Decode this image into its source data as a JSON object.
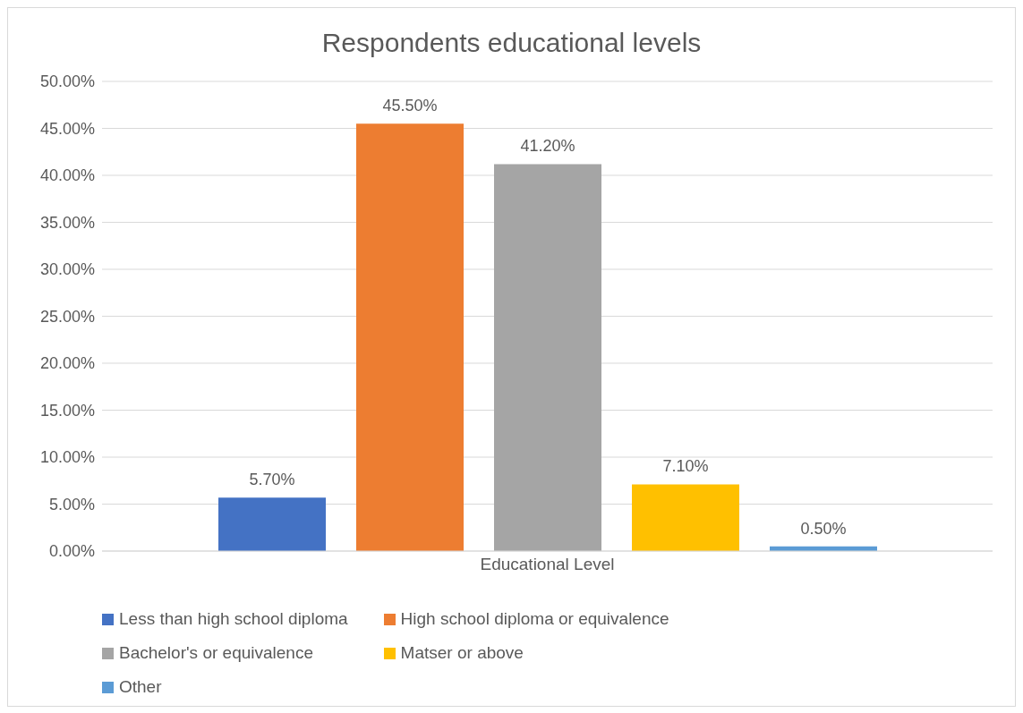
{
  "chart_data": {
    "type": "bar",
    "title": "Respondents educational levels",
    "categories": [
      "Educational Level"
    ],
    "series": [
      {
        "name": "Less than high school diploma",
        "color": "#4472c4",
        "values": [
          5.7
        ],
        "value_labels": [
          "5.70%"
        ]
      },
      {
        "name": "High school diploma or equivalence",
        "color": "#ed7d31",
        "values": [
          45.5
        ],
        "value_labels": [
          "45.50%"
        ]
      },
      {
        "name": "Bachelor's or equivalence",
        "color": "#a5a5a5",
        "values": [
          41.2
        ],
        "value_labels": [
          "41.20%"
        ]
      },
      {
        "name": "Matser or above",
        "color": "#ffc000",
        "values": [
          7.1
        ],
        "value_labels": [
          "7.10%"
        ]
      },
      {
        "name": "Other",
        "color": "#5b9bd5",
        "values": [
          0.5
        ],
        "value_labels": [
          "0.50%"
        ]
      }
    ],
    "ylim": [
      0,
      50
    ],
    "yticks": [
      {
        "value": 0,
        "label": "0.00%"
      },
      {
        "value": 5,
        "label": "5.00%"
      },
      {
        "value": 10,
        "label": "10.00%"
      },
      {
        "value": 15,
        "label": "15.00%"
      },
      {
        "value": 20,
        "label": "20.00%"
      },
      {
        "value": 25,
        "label": "25.00%"
      },
      {
        "value": 30,
        "label": "30.00%"
      },
      {
        "value": 35,
        "label": "35.00%"
      },
      {
        "value": 40,
        "label": "40.00%"
      },
      {
        "value": 45,
        "label": "45.00%"
      },
      {
        "value": 50,
        "label": "50.00%"
      }
    ],
    "grid": "y",
    "legend": "bottom"
  }
}
